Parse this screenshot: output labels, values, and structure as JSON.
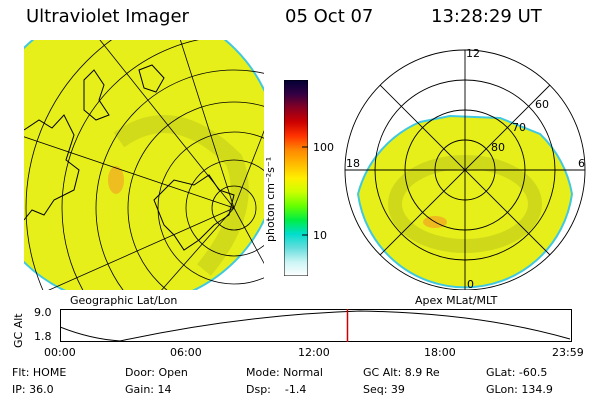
{
  "header": {
    "title": "Ultraviolet Imager",
    "date": "05 Oct 07",
    "time": "13:28:29 UT"
  },
  "left_panel": {
    "caption": "Geographic Lat/Lon"
  },
  "right_panel": {
    "caption": "Apex MLat/MLT",
    "mlt_labels": {
      "top": "12",
      "left": "18",
      "right": "6",
      "bottom": "0"
    },
    "lat_labels": [
      "60",
      "70",
      "80"
    ]
  },
  "colorbar": {
    "unit_label": "photon cm⁻²s⁻¹",
    "ticks": [
      "100",
      "10"
    ],
    "colors": [
      "#000033",
      "#330044",
      "#880022",
      "#cc0000",
      "#ff3300",
      "#ff8800",
      "#ffbb00",
      "#ffee00",
      "#ccff00",
      "#66ff00",
      "#00ee44",
      "#00ddcc",
      "#66dddd",
      "#ccf5f5",
      "#ffffff"
    ]
  },
  "altitude_plot": {
    "axis_label": "GC Alt",
    "y_ticks": [
      "9.0",
      "1.8"
    ],
    "x_ticks": [
      "00:00",
      "06:00",
      "12:00",
      "18:00",
      "23:59"
    ],
    "marker_time": "13:28",
    "marker_color": "#cc0000"
  },
  "info": {
    "flt": "Flt: HOME",
    "ip": "IP: 36.0",
    "door": "Door: Open",
    "gain": "Gain: 14",
    "mode": "Mode: Normal",
    "dsp": "Dsp:    -1.4",
    "gc_alt": "GC Alt: 8.9 Re",
    "seq": "Seq: 39",
    "glat": "GLat: -60.5",
    "glon": "GLon: 134.9"
  },
  "colors": {
    "aurora_fill": "#e6ef1a",
    "aurora_band": "#c9d31a",
    "aurora_hot": "#f0a020",
    "edge": "#40c8e0"
  }
}
